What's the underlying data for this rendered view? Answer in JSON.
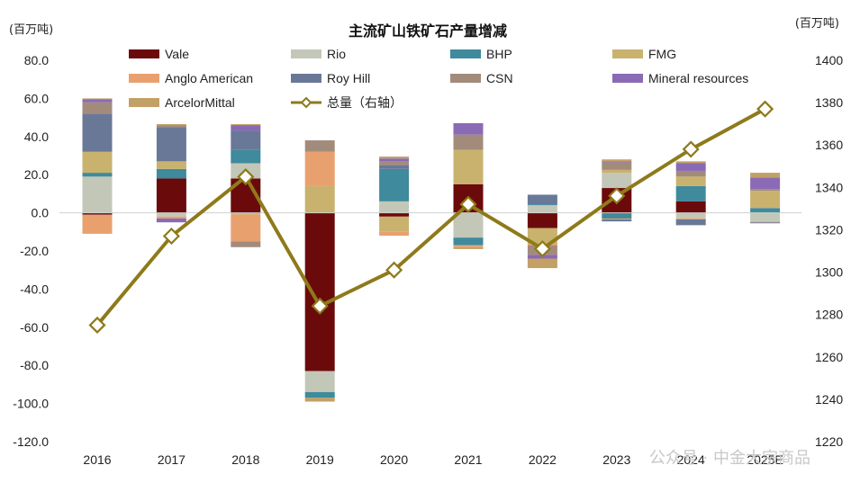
{
  "chart_data": {
    "type": "bar",
    "title": "主流矿山铁矿石产量增减",
    "left_unit": "(百万吨)",
    "right_unit": "(百万吨)",
    "categories": [
      "2016",
      "2017",
      "2018",
      "2019",
      "2020",
      "2021",
      "2022",
      "2023",
      "2024",
      "2025E"
    ],
    "ylim": [
      -120,
      80
    ],
    "y_ticks": [
      "80.0",
      "60.0",
      "40.0",
      "20.0",
      "0.0",
      "-20.0",
      "-40.0",
      "-60.0",
      "-80.0",
      "-100.0",
      "-120.0"
    ],
    "y2lim": [
      1220,
      1400
    ],
    "y2_ticks": [
      "1400",
      "1380",
      "1360",
      "1340",
      "1320",
      "1300",
      "1280",
      "1260",
      "1240",
      "1220"
    ],
    "series": [
      {
        "name": "Vale",
        "color": "#6b0a0a",
        "values": [
          -1,
          18,
          18,
          -83,
          -2,
          15,
          -8,
          13,
          6,
          0
        ]
      },
      {
        "name": "Rio",
        "color": "#c3c7b8",
        "values": [
          19,
          -2,
          8,
          -11,
          6,
          -13,
          4,
          8,
          -3,
          -4.5
        ]
      },
      {
        "name": "BHP",
        "color": "#3f8a9c",
        "values": [
          2,
          5,
          7,
          -3,
          17,
          -4,
          0.5,
          -3,
          8,
          2.5
        ]
      },
      {
        "name": "FMG",
        "color": "#c9b26e",
        "values": [
          11,
          4,
          -1,
          14,
          -8,
          18,
          -8,
          1.5,
          5,
          9
        ]
      },
      {
        "name": "Anglo American",
        "color": "#e9a06f",
        "values": [
          -10,
          -1,
          -14,
          18,
          -2,
          -1,
          -1,
          -0.5,
          -0.5,
          -0.5
        ]
      },
      {
        "name": "Roy Hill",
        "color": "#6a7898",
        "values": [
          20,
          18,
          10,
          0,
          2,
          0,
          5,
          -1,
          -3,
          -0.5
        ]
      },
      {
        "name": "CSN",
        "color": "#a38b7c",
        "values": [
          6,
          1,
          -3,
          6,
          2,
          8,
          -5,
          4,
          3,
          1
        ]
      },
      {
        "name": "Mineral resources",
        "color": "#8a6ab5",
        "values": [
          1.5,
          -2,
          3,
          0,
          1.5,
          6,
          -2,
          0.5,
          4,
          6
        ]
      },
      {
        "name": "ArcelorMittal",
        "color": "#c2a066",
        "values": [
          0.5,
          0.5,
          0.5,
          -2,
          1,
          -1,
          -5,
          1,
          1,
          2.5
        ]
      }
    ],
    "line": {
      "name": "总量（右轴）",
      "color": "#8e7a1a",
      "values": [
        1275,
        1317,
        1345,
        1284,
        1301,
        1332,
        1311,
        1336,
        1358,
        1377
      ]
    },
    "legend_position": "top",
    "grid": false
  },
  "watermark": "公众号 · 中金大宗商品"
}
